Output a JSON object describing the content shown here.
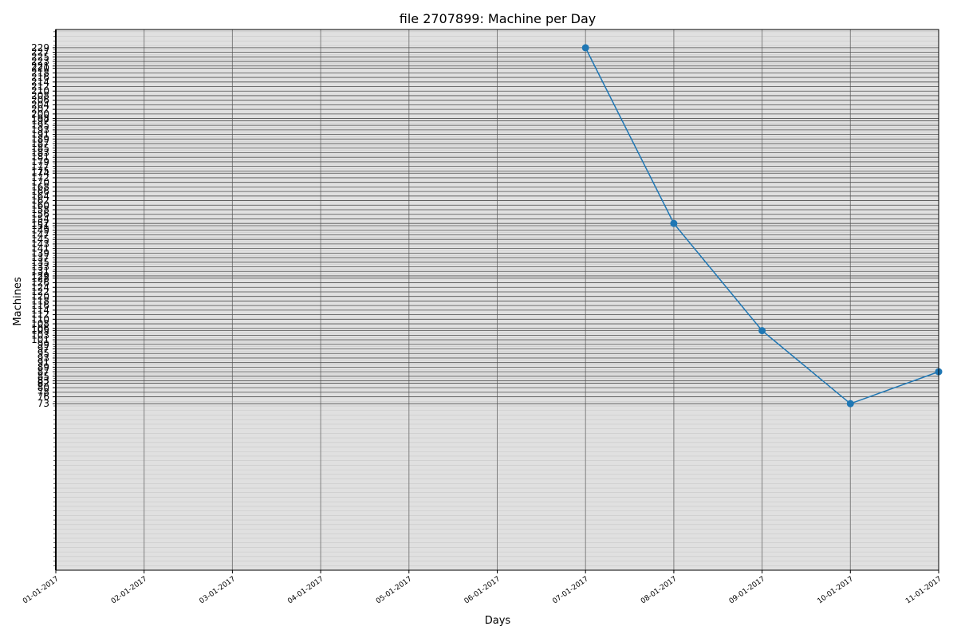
{
  "chart_data": {
    "type": "line",
    "title": "file 2707899: Machine per Day",
    "xlabel": "Days",
    "ylabel": "Machines",
    "x": [
      "07-01-2017",
      "08-01-2017",
      "09-01-2017",
      "10-01-2017",
      "11-01-2017"
    ],
    "y": [
      229,
      152,
      105,
      73,
      87
    ],
    "x_ticks": [
      "01-01-2017",
      "02-01-2017",
      "03-01-2017",
      "04-01-2017",
      "05-01-2017",
      "06-01-2017",
      "07-01-2017",
      "08-01-2017",
      "09-01-2017",
      "10-01-2017",
      "11-01-2017"
    ],
    "y_ticks": [
      73,
      76,
      78,
      80,
      82,
      83,
      85,
      87,
      89,
      91,
      93,
      95,
      97,
      99,
      101,
      103,
      105,
      106,
      108,
      110,
      112,
      114,
      116,
      118,
      120,
      122,
      124,
      126,
      128,
      129,
      131,
      133,
      135,
      137,
      139,
      141,
      143,
      145,
      147,
      149,
      151,
      152,
      154,
      156,
      158,
      160,
      162,
      164,
      166,
      168,
      170,
      172,
      174,
      175,
      177,
      179,
      181,
      183,
      185,
      187,
      189,
      191,
      193,
      195,
      197,
      198,
      200,
      202,
      204,
      206,
      208,
      210,
      212,
      214,
      216,
      218,
      220,
      221,
      223,
      225,
      227,
      229
    ],
    "ylim": [
      0,
      237
    ],
    "grid": true,
    "line_color": "#1f77b4",
    "background_color": "#e0e0e0"
  }
}
